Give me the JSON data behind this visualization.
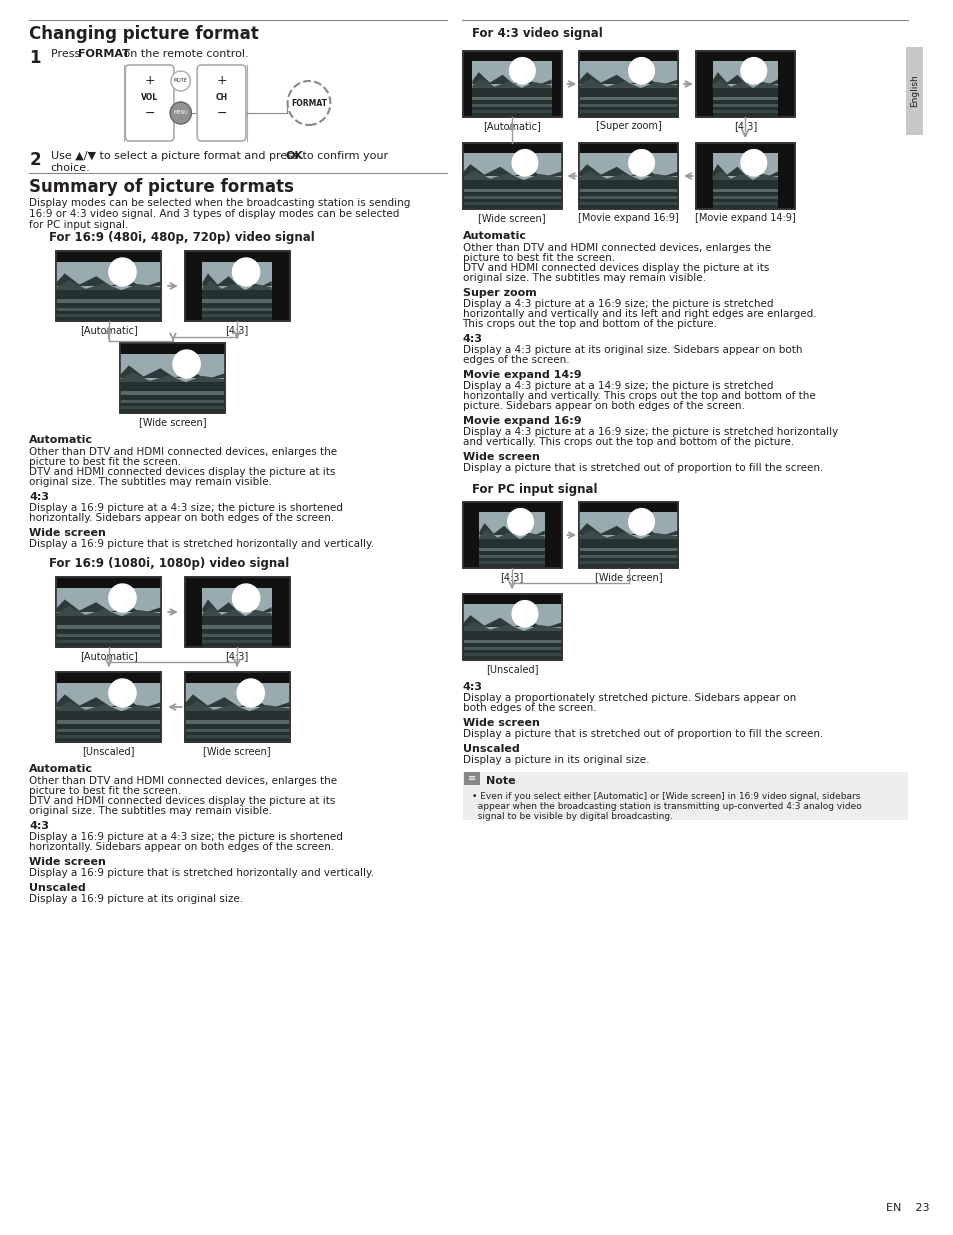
{
  "title1": "Changing picture format",
  "title2": "Summary of picture formats",
  "section169_480": "For 16:9 (480i, 480p, 720p) video signal",
  "section169_1080": "For 16:9 (1080i, 1080p) video signal",
  "section43": "For 4:3 video signal",
  "sectionPC": "For PC input signal",
  "summary_intro_lines": [
    "Display modes can be selected when the broadcasting station is sending",
    "16:9 or 4:3 video signal. And 3 types of display modes can be selected",
    "for PC input signal."
  ],
  "bg_color": "#ffffff",
  "text_color": "#231f20",
  "arrow_color": "#999999",
  "border_color": "#333333",
  "sky_color": "#9aabb0",
  "mountain_dark": "#2d3a3a",
  "mountain_mid": "#3d4a4a",
  "water_dark": "#253030",
  "water_light": "#586868",
  "sidebar_color": "#c8c8c8",
  "note_bg": "#eeeeee"
}
